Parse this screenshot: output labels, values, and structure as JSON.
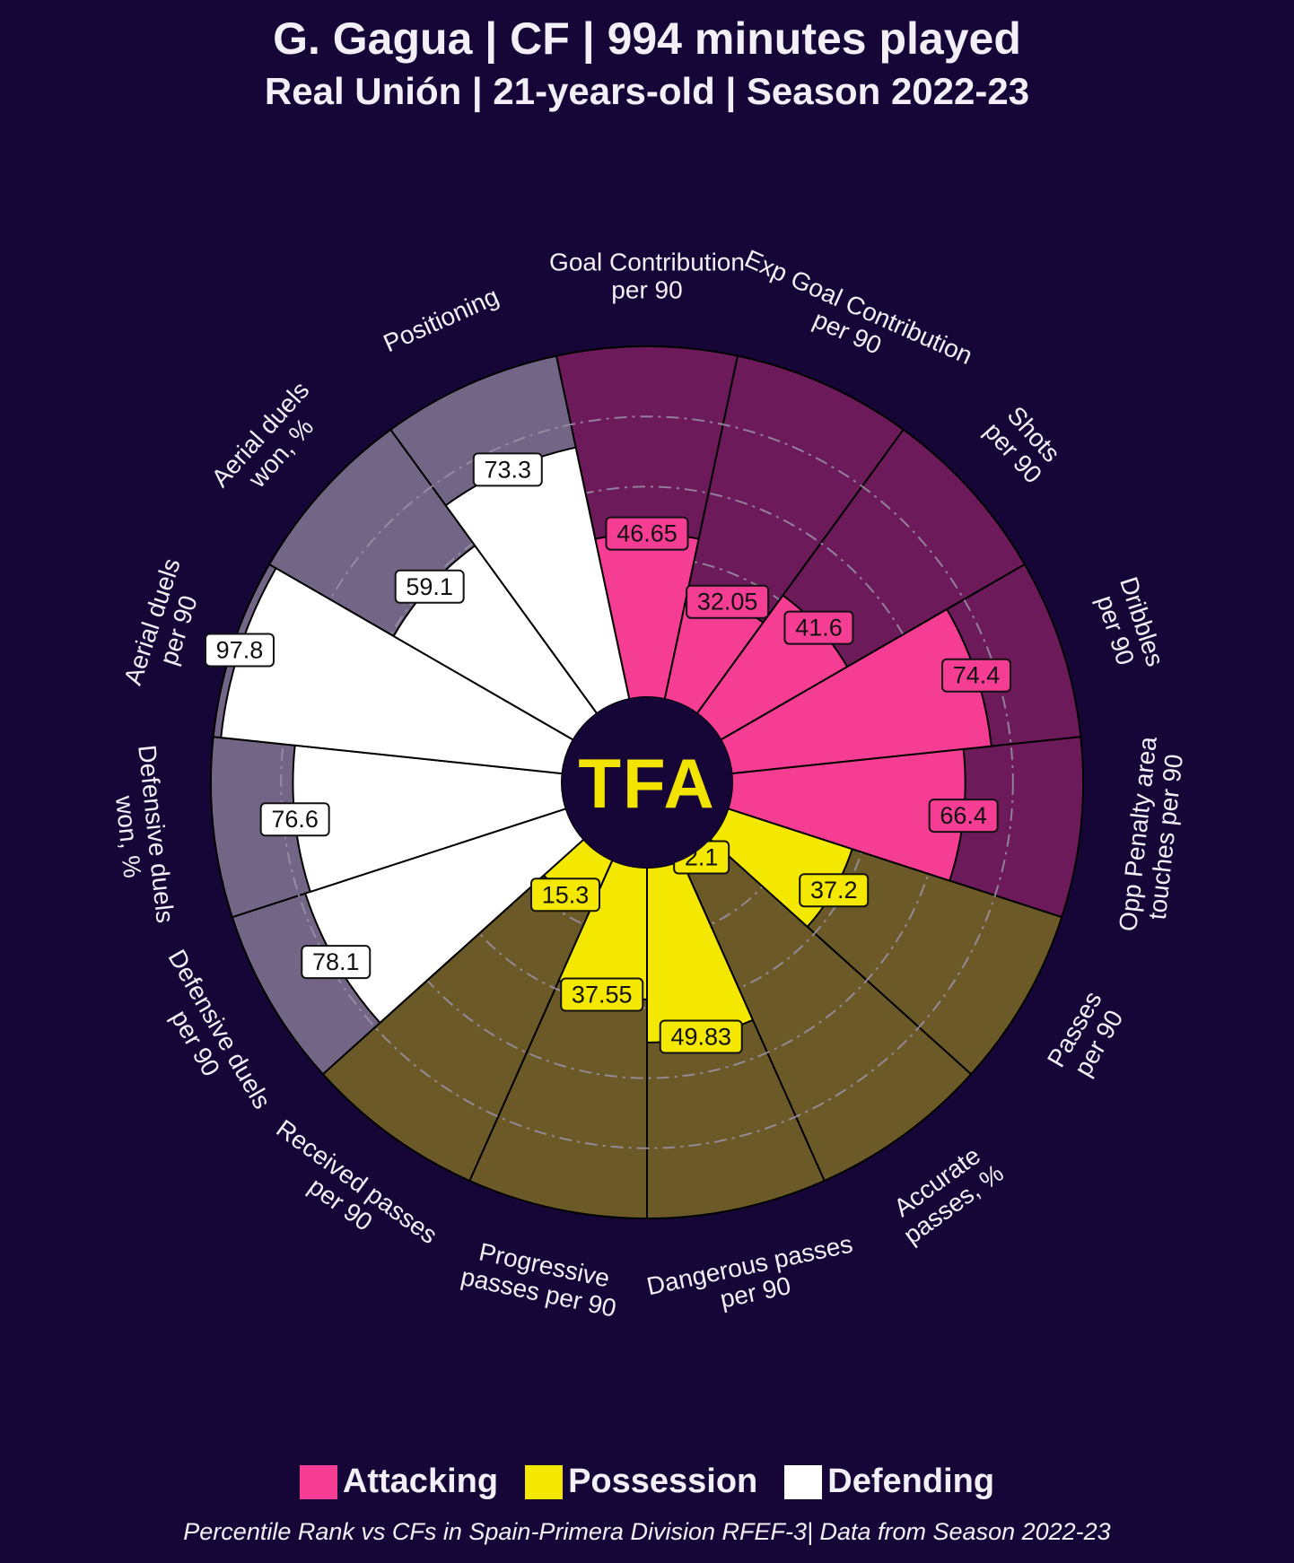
{
  "header": {
    "title": "G. Gagua | CF | 994 minutes played",
    "subtitle": "Real Unión | 21-years-old | Season 2022-23"
  },
  "logo": {
    "text": "TFA",
    "color": "#f2e400"
  },
  "colors": {
    "background": "#150637",
    "attacking": "#f53d93",
    "attacking_bg": "#6c1a5a",
    "possession": "#f5e800",
    "possession_bg": "#6b5a28",
    "defending": "#ffffff",
    "defending_bg": "#736585"
  },
  "legend": [
    {
      "label": "Attacking",
      "color": "#f53d93"
    },
    {
      "label": "Possession",
      "color": "#f5e800"
    },
    {
      "label": "Defending",
      "color": "#ffffff"
    }
  ],
  "footer": "Percentile Rank vs CFs in Spain-Primera Division RFEF-3| Data from Season 2022-23",
  "chart_data": {
    "type": "radial-bar (pizza)",
    "scale": [
      0,
      100
    ],
    "grid": "dash-dot rings at 20, 40, 60, 80",
    "categories": [
      {
        "label": [
          "Goal Contribution",
          "per 90"
        ],
        "value": 46.65,
        "group": "Attacking"
      },
      {
        "label": [
          "Exp Goal Contribution",
          "per 90"
        ],
        "value": 32.05,
        "group": "Attacking"
      },
      {
        "label": [
          "Shots",
          "per 90"
        ],
        "value": 41.6,
        "group": "Attacking"
      },
      {
        "label": [
          "Dribbles",
          "per 90"
        ],
        "value": 74.4,
        "group": "Attacking"
      },
      {
        "label": [
          "Opp Penalty area",
          "touches per 90"
        ],
        "value": 66.4,
        "group": "Attacking"
      },
      {
        "label": [
          "Passes",
          "per 90"
        ],
        "value": 37.2,
        "group": "Possession"
      },
      {
        "label": [
          "Accurate",
          "passes, %"
        ],
        "value": 2.1,
        "group": "Possession"
      },
      {
        "label": [
          "Dangerous passes",
          "per 90"
        ],
        "value": 49.83,
        "group": "Possession"
      },
      {
        "label": [
          "Progressive",
          "passes per 90"
        ],
        "value": 37.55,
        "group": "Possession"
      },
      {
        "label": [
          "Received passes",
          "per 90"
        ],
        "value": 15.3,
        "group": "Possession"
      },
      {
        "label": [
          "Defensive duels",
          "per 90"
        ],
        "value": 78.1,
        "group": "Defending"
      },
      {
        "label": [
          "Defensive duels",
          "won, %"
        ],
        "value": 76.6,
        "group": "Defending"
      },
      {
        "label": [
          "Aerial duels",
          "per 90"
        ],
        "value": 97.8,
        "group": "Defending"
      },
      {
        "label": [
          "Aerial duels",
          "won, %"
        ],
        "value": 59.1,
        "group": "Defending"
      },
      {
        "label": [
          "Positioning"
        ],
        "value": 73.3,
        "group": "Defending"
      }
    ]
  }
}
